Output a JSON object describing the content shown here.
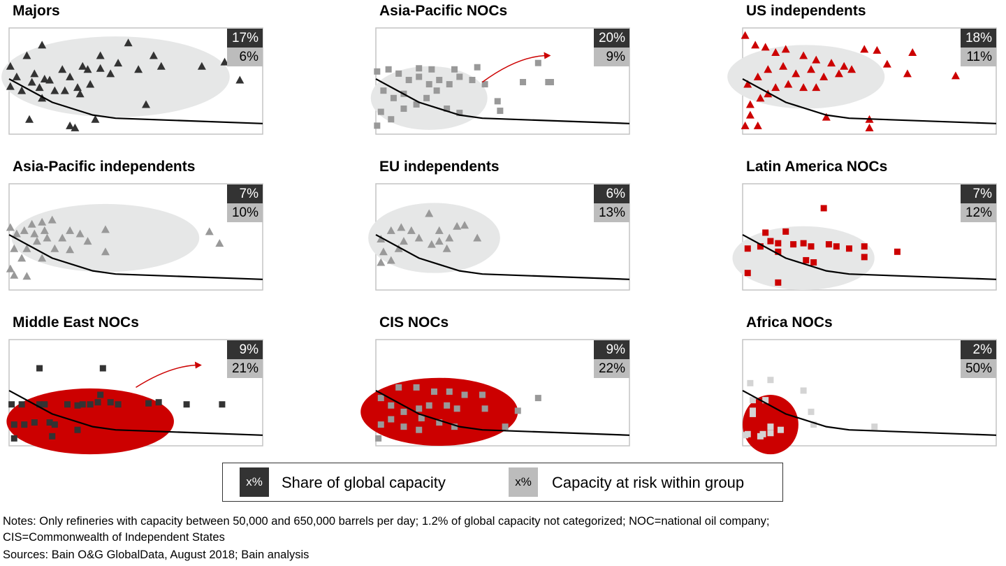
{
  "colors": {
    "dark": "#333333",
    "gray": "#999999",
    "red": "#cc0000",
    "light": "#d4d4d4",
    "ellipse_light": "#e6e7e7",
    "ellipse_red": "#cc0000",
    "arrow": "#cc0000"
  },
  "chart_data": {
    "type": "scatter",
    "note": "Small multiples; axes unlabeled, values in arbitrary 0-100 units",
    "xlim": [
      0,
      100
    ],
    "ylim": [
      0,
      100
    ],
    "curve": [
      [
        0,
        52
      ],
      [
        17,
        30
      ],
      [
        33,
        18
      ],
      [
        42,
        15
      ],
      [
        100,
        10
      ]
    ],
    "panels": [
      {
        "title": "Majors",
        "share": "17%",
        "risk": "6%",
        "marker": "triangle",
        "color": "dark",
        "ellipse": {
          "cx": 42,
          "cy": 54,
          "rx": 45,
          "ry": 38,
          "fill": "ellipse_light"
        },
        "points": [
          [
            0.5,
            64
          ],
          [
            7,
            74
          ],
          [
            13,
            84
          ],
          [
            47,
            86
          ],
          [
            76,
            64
          ],
          [
            85,
            68
          ],
          [
            91,
            51
          ],
          [
            54,
            28
          ],
          [
            24,
            8
          ],
          [
            26,
            6
          ],
          [
            8,
            14
          ],
          [
            34,
            14
          ],
          [
            3,
            54
          ],
          [
            10,
            57
          ],
          [
            16,
            51
          ],
          [
            21,
            61
          ],
          [
            29,
            64
          ],
          [
            36,
            62
          ],
          [
            32,
            47
          ],
          [
            40,
            57
          ],
          [
            27,
            44
          ],
          [
            18,
            41
          ],
          [
            12,
            44
          ],
          [
            5,
            41
          ],
          [
            24,
            54
          ],
          [
            31,
            61
          ],
          [
            43,
            67
          ],
          [
            51,
            61
          ],
          [
            57,
            74
          ],
          [
            60,
            64
          ],
          [
            36,
            74
          ],
          [
            22,
            41
          ],
          [
            28,
            38
          ],
          [
            13,
            34
          ],
          [
            0.5,
            45
          ],
          [
            9,
            49
          ],
          [
            14,
            52
          ]
        ]
      },
      {
        "title": "Asia-Pacific NOCs",
        "share": "20%",
        "risk": "9%",
        "marker": "square",
        "color": "gray",
        "ellipse": {
          "cx": 21,
          "cy": 34,
          "rx": 23,
          "ry": 30,
          "fill": "ellipse_light"
        },
        "arrow": [
          [
            42,
            49
          ],
          [
            69,
            74
          ]
        ],
        "points": [
          [
            0.5,
            59
          ],
          [
            5,
            61
          ],
          [
            9,
            57
          ],
          [
            13,
            51
          ],
          [
            17,
            54
          ],
          [
            21,
            47
          ],
          [
            25,
            51
          ],
          [
            29,
            47
          ],
          [
            33,
            54
          ],
          [
            38,
            51
          ],
          [
            40,
            63
          ],
          [
            43,
            47
          ],
          [
            3,
            41
          ],
          [
            7,
            34
          ],
          [
            11,
            38
          ],
          [
            16,
            28
          ],
          [
            20,
            34
          ],
          [
            24,
            41
          ],
          [
            28,
            24
          ],
          [
            33,
            20
          ],
          [
            2,
            21
          ],
          [
            6,
            14
          ],
          [
            0.5,
            8
          ],
          [
            11,
            24
          ],
          [
            48,
            31
          ],
          [
            49,
            22
          ],
          [
            58,
            49
          ],
          [
            64,
            67
          ],
          [
            68,
            49
          ],
          [
            69,
            49
          ],
          [
            17,
            62
          ],
          [
            22,
            61
          ],
          [
            31,
            61
          ]
        ]
      },
      {
        "title": "US independents",
        "share": "18%",
        "risk": "11%",
        "marker": "triangle",
        "color": "red",
        "ellipse": {
          "cx": 25,
          "cy": 54,
          "rx": 31,
          "ry": 30,
          "fill": "ellipse_light"
        },
        "points": [
          [
            1,
            93
          ],
          [
            5,
            84
          ],
          [
            9,
            82
          ],
          [
            13,
            77
          ],
          [
            17,
            80
          ],
          [
            24,
            74
          ],
          [
            29,
            70
          ],
          [
            35,
            67
          ],
          [
            40,
            64
          ],
          [
            48,
            80
          ],
          [
            53,
            79
          ],
          [
            57,
            66
          ],
          [
            65,
            57
          ],
          [
            67,
            77
          ],
          [
            84,
            55
          ],
          [
            33,
            16
          ],
          [
            50,
            14
          ],
          [
            50,
            6
          ],
          [
            1,
            8
          ],
          [
            6,
            8
          ],
          [
            3,
            28
          ],
          [
            7,
            34
          ],
          [
            2,
            47
          ],
          [
            6,
            54
          ],
          [
            10,
            61
          ],
          [
            16,
            64
          ],
          [
            21,
            57
          ],
          [
            27,
            61
          ],
          [
            32,
            54
          ],
          [
            38,
            57
          ],
          [
            43,
            61
          ],
          [
            13,
            44
          ],
          [
            18,
            47
          ],
          [
            24,
            44
          ],
          [
            29,
            44
          ],
          [
            10,
            38
          ],
          [
            3,
            18
          ]
        ]
      },
      {
        "title": "Asia-Pacific independents",
        "share": "7%",
        "risk": "10%",
        "marker": "triangle",
        "color": "gray",
        "ellipse": {
          "cx": 38,
          "cy": 49,
          "rx": 37,
          "ry": 32,
          "fill": "ellipse_light"
        },
        "points": [
          [
            0.5,
            59
          ],
          [
            3,
            53
          ],
          [
            6,
            56
          ],
          [
            9,
            62
          ],
          [
            13,
            64
          ],
          [
            17,
            66
          ],
          [
            2,
            39
          ],
          [
            7,
            39
          ],
          [
            11,
            46
          ],
          [
            15,
            49
          ],
          [
            21,
            49
          ],
          [
            24,
            56
          ],
          [
            28,
            53
          ],
          [
            31,
            46
          ],
          [
            38,
            57
          ],
          [
            38,
            36
          ],
          [
            5,
            30
          ],
          [
            13,
            30
          ],
          [
            0.5,
            20
          ],
          [
            7,
            13
          ],
          [
            2,
            14
          ],
          [
            79,
            55
          ],
          [
            83,
            44
          ],
          [
            18,
            39
          ],
          [
            24,
            38
          ],
          [
            10,
            53
          ],
          [
            14,
            56
          ]
        ]
      },
      {
        "title": "EU independents",
        "share": "6%",
        "risk": "13%",
        "marker": "triangle",
        "color": "gray",
        "ellipse": {
          "cx": 23,
          "cy": 49,
          "rx": 26,
          "ry": 33,
          "fill": "ellipse_light"
        },
        "points": [
          [
            2,
            48
          ],
          [
            6,
            56
          ],
          [
            10,
            59
          ],
          [
            14,
            56
          ],
          [
            17,
            49
          ],
          [
            21,
            72
          ],
          [
            25,
            56
          ],
          [
            29,
            49
          ],
          [
            32,
            60
          ],
          [
            35,
            61
          ],
          [
            40,
            49
          ],
          [
            28,
            39
          ],
          [
            22,
            43
          ],
          [
            3,
            36
          ],
          [
            9,
            39
          ],
          [
            2,
            26
          ],
          [
            6,
            28
          ],
          [
            11,
            46
          ],
          [
            25,
            46
          ]
        ]
      },
      {
        "title": "Latin America NOCs",
        "share": "7%",
        "risk": "12%",
        "marker": "square",
        "color": "red",
        "ellipse": {
          "cx": 24,
          "cy": 30,
          "rx": 28,
          "ry": 30,
          "fill": "ellipse_light"
        },
        "points": [
          [
            32,
            77
          ],
          [
            9,
            54
          ],
          [
            11,
            46
          ],
          [
            2,
            39
          ],
          [
            7,
            41
          ],
          [
            14,
            44
          ],
          [
            17,
            55
          ],
          [
            20,
            43
          ],
          [
            24,
            44
          ],
          [
            27,
            41
          ],
          [
            34,
            43
          ],
          [
            37,
            41
          ],
          [
            42,
            39
          ],
          [
            48,
            41
          ],
          [
            61,
            36
          ],
          [
            14,
            36
          ],
          [
            25,
            28
          ],
          [
            28,
            26
          ],
          [
            2,
            16
          ],
          [
            14,
            7
          ],
          [
            48,
            31
          ]
        ]
      },
      {
        "title": "Middle East NOCs",
        "share": "9%",
        "risk": "21%",
        "marker": "square",
        "color": "dark",
        "ellipse": {
          "cx": 32,
          "cy": 23,
          "rx": 33,
          "ry": 31,
          "fill": "ellipse_red"
        },
        "arrow": [
          [
            50,
            55
          ],
          [
            76,
            76
          ]
        ],
        "points": [
          [
            12,
            73
          ],
          [
            37,
            73
          ],
          [
            1,
            39
          ],
          [
            5,
            39
          ],
          [
            12,
            39
          ],
          [
            14,
            39
          ],
          [
            23,
            39
          ],
          [
            27,
            38
          ],
          [
            29,
            39
          ],
          [
            32,
            39
          ],
          [
            35,
            41
          ],
          [
            40,
            41
          ],
          [
            43,
            39
          ],
          [
            55,
            40
          ],
          [
            59,
            41
          ],
          [
            70,
            39
          ],
          [
            84,
            39
          ],
          [
            2,
            20
          ],
          [
            6,
            20
          ],
          [
            10,
            22
          ],
          [
            16,
            22
          ],
          [
            18,
            20
          ],
          [
            2,
            7
          ],
          [
            17,
            9
          ],
          [
            27,
            15
          ],
          [
            36,
            48
          ]
        ]
      },
      {
        "title": "CIS NOCs",
        "share": "9%",
        "risk": "22%",
        "marker": "square",
        "color": "gray",
        "ellipse": {
          "cx": 25,
          "cy": 32,
          "rx": 31,
          "ry": 32,
          "fill": "ellipse_red"
        },
        "points": [
          [
            9,
            55
          ],
          [
            16,
            55
          ],
          [
            23,
            51
          ],
          [
            29,
            51
          ],
          [
            35,
            48
          ],
          [
            42,
            48
          ],
          [
            2,
            45
          ],
          [
            6,
            38
          ],
          [
            11,
            32
          ],
          [
            17,
            35
          ],
          [
            21,
            38
          ],
          [
            28,
            38
          ],
          [
            32,
            35
          ],
          [
            43,
            35
          ],
          [
            2,
            20
          ],
          [
            6,
            25
          ],
          [
            11,
            18
          ],
          [
            18,
            26
          ],
          [
            25,
            22
          ],
          [
            31,
            18
          ],
          [
            56,
            33
          ],
          [
            64,
            45
          ],
          [
            51,
            18
          ],
          [
            1,
            7
          ],
          [
            17,
            15
          ]
        ]
      },
      {
        "title": "Africa NOCs",
        "share": "2%",
        "risk": "50%",
        "marker": "square",
        "color": "light",
        "ellipse": {
          "cx": 11,
          "cy": 20,
          "rx": 11,
          "ry": 28,
          "fill": "ellipse_red"
        },
        "points": [
          [
            3,
            59
          ],
          [
            11,
            62
          ],
          [
            24,
            52
          ],
          [
            4,
            43
          ],
          [
            9,
            43
          ],
          [
            4,
            30
          ],
          [
            4,
            33
          ],
          [
            27,
            32
          ],
          [
            28,
            20
          ],
          [
            52,
            18
          ],
          [
            1,
            10
          ],
          [
            2,
            11
          ],
          [
            7,
            9
          ],
          [
            8,
            11
          ],
          [
            11,
            12
          ],
          [
            11,
            18
          ],
          [
            15,
            15
          ]
        ]
      }
    ]
  },
  "legend": {
    "swatch_text": "x%",
    "share_label": "Share of global capacity",
    "risk_label": "Capacity at risk within group"
  },
  "notes": {
    "line1": "Notes: Only refineries with capacity between 50,000 and 650,000 barrels per day; 1.2% of global capacity not categorized; NOC=national oil company;",
    "line2": "CIS=Commonwealth of Independent States",
    "line3": "Sources: Bain O&G GlobalData, August 2018; Bain analysis"
  }
}
